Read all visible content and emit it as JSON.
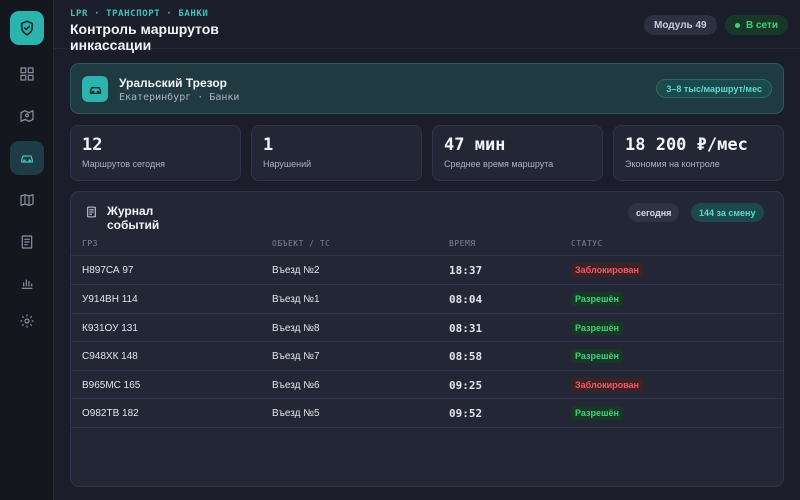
{
  "header": {
    "eyebrow": "LPR · ТРАНСПОРТ · БАНКИ",
    "title": "Контроль маршрутов инкассации",
    "module": "Модуль 49",
    "status": "В сети"
  },
  "sidebar": {
    "items": [
      {
        "icon": "dashboard-icon"
      },
      {
        "icon": "map-route-icon"
      },
      {
        "icon": "car-icon",
        "active": true
      },
      {
        "icon": "map-icon"
      },
      {
        "icon": "document-icon"
      },
      {
        "icon": "chart-icon"
      },
      {
        "icon": "gear-icon"
      }
    ]
  },
  "banner": {
    "name": "Уральский Трезор",
    "subtitle": "Екатеринбург · Банки",
    "badge": "3–8 тыс/маршрут/мес"
  },
  "stats": [
    {
      "value": "12",
      "label": "Маршрутов сегодня"
    },
    {
      "value": "1",
      "label": "Нарушений"
    },
    {
      "value": "47 мин",
      "label": "Среднее время маршрута"
    },
    {
      "value": "18 200 ₽/мес",
      "label": "Экономия на контроле"
    }
  ],
  "journal": {
    "title": "Журнал событий",
    "filter_today": "сегодня",
    "shift_count": "144 за смену",
    "columns": [
      "ГРЗ",
      "ОБЪЕКТ / ТС",
      "ВРЕМЯ",
      "СТАТУС"
    ],
    "rows": [
      {
        "plate": "Н897СА 97",
        "object": "Въезд №2",
        "time": "18:37",
        "status": "Заблокирован",
        "kind": "blocked"
      },
      {
        "plate": "У914ВН 114",
        "object": "Въезд №1",
        "time": "08:04",
        "status": "Разрешён",
        "kind": "allowed"
      },
      {
        "plate": "К931ОУ 131",
        "object": "Въезд №8",
        "time": "08:31",
        "status": "Разрешён",
        "kind": "allowed"
      },
      {
        "plate": "С948ХК 148",
        "object": "Въезд №7",
        "time": "08:58",
        "status": "Разрешён",
        "kind": "allowed"
      },
      {
        "plate": "В965МС 165",
        "object": "Въезд №6",
        "time": "09:25",
        "status": "Заблокирован",
        "kind": "blocked"
      },
      {
        "plate": "О982ТВ 182",
        "object": "Въезд №5",
        "time": "09:52",
        "status": "Разрешён",
        "kind": "allowed"
      }
    ]
  },
  "colors": {
    "accent": "#2bb3ad",
    "allowed": "#3fd07a",
    "blocked": "#ee5b63",
    "background": "#1b1e2a"
  }
}
